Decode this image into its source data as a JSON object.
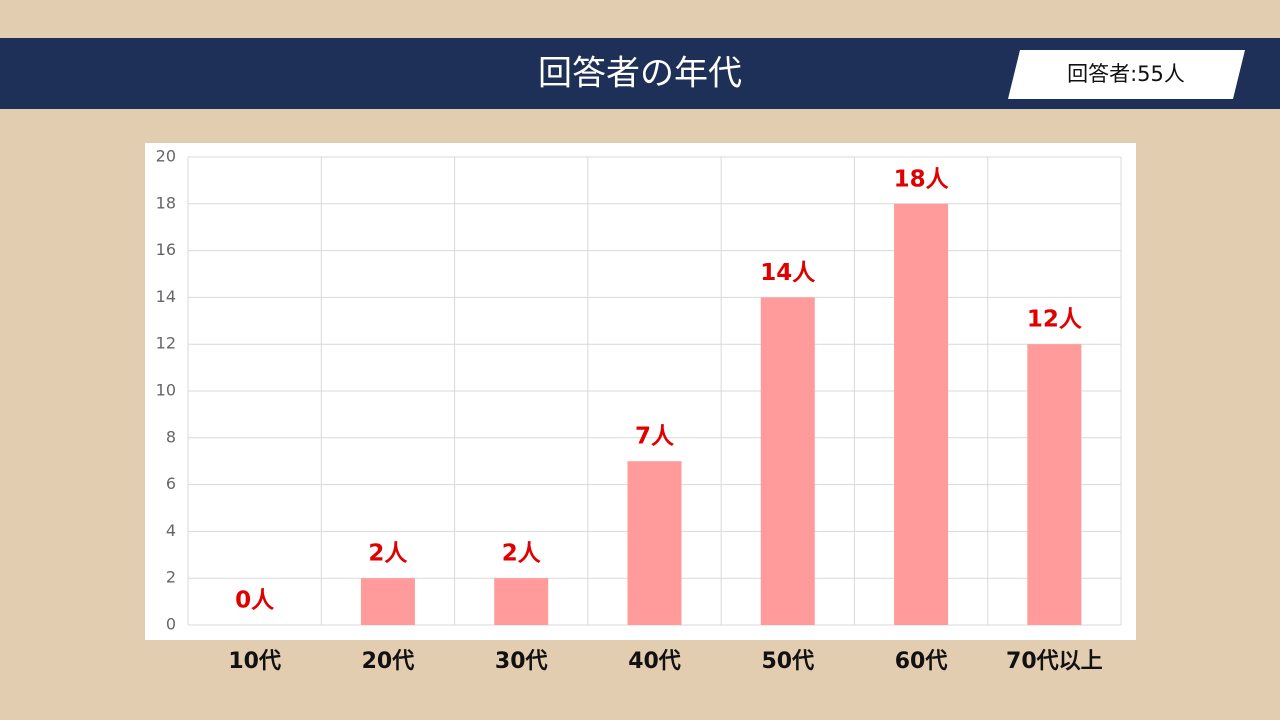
{
  "header": {
    "title": "回答者の年代",
    "badge": "回答者:55人"
  },
  "chart_data": {
    "type": "bar",
    "categories": [
      "10代",
      "20代",
      "30代",
      "40代",
      "50代",
      "60代",
      "70代以上"
    ],
    "values": [
      0,
      2,
      2,
      7,
      14,
      18,
      12
    ],
    "value_labels": [
      "0人",
      "2人",
      "2人",
      "7人",
      "14人",
      "18人",
      "12人"
    ],
    "color": "#ff9b9b",
    "ylim": [
      0,
      20
    ],
    "yticks": [
      0,
      2,
      4,
      6,
      8,
      10,
      12,
      14,
      16,
      18,
      20
    ],
    "grid": true
  }
}
